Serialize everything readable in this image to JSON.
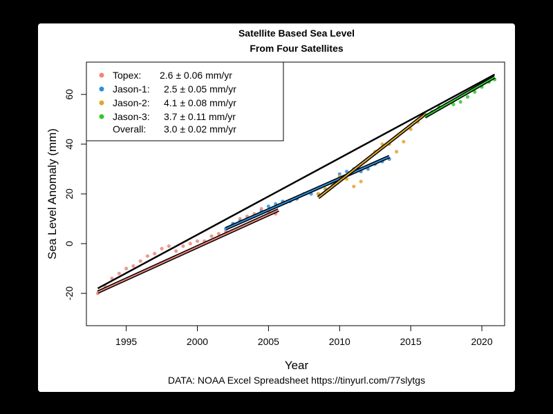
{
  "chart_data": {
    "type": "scatter",
    "title": "Satellite Based Sea Level",
    "subtitle": "From Four Satellites",
    "xlabel": "Year",
    "ylabel": "Sea Level Anomaly (mm)",
    "xlim": [
      1992.2,
      2021.6
    ],
    "ylim": [
      -33,
      73
    ],
    "x_ticks": [
      1995,
      2000,
      2005,
      2010,
      2015,
      2020
    ],
    "y_ticks": [
      -20,
      0,
      20,
      40,
      60
    ],
    "grid": false,
    "legend_position": "top-left",
    "caption": "DATA: NOAA Excel Spreadsheet https://tinyurl.com/77slytgs",
    "series": [
      {
        "name": "Topex",
        "legend_label": "Topex:",
        "rate_text": "2.6 ± 0.06 mm/yr",
        "color": "#f0857a",
        "x": [
          1993.0,
          1993.5,
          1994.0,
          1994.5,
          1995.0,
          1995.5,
          1996.0,
          1996.5,
          1997.0,
          1997.5,
          1998.0,
          1998.5,
          1999.0,
          1999.5,
          2000.0,
          2000.5,
          2001.0,
          2001.5,
          2002.0,
          2002.5,
          2003.0,
          2003.5,
          2004.0,
          2004.5,
          2005.0,
          2005.5
        ],
        "y": [
          -20,
          -17,
          -14,
          -12,
          -10,
          -9,
          -7,
          -5,
          -4,
          -2,
          -1,
          -3,
          -1,
          0,
          1,
          1,
          3,
          4,
          5,
          8,
          10,
          11,
          12,
          14,
          13,
          12
        ],
        "fit": [
          [
            1993.0,
            -19.5
          ],
          [
            2005.7,
            13.5
          ]
        ],
        "fit_color": "#f0857a"
      },
      {
        "name": "Jason-1",
        "legend_label": "Jason-1:",
        "rate_text": "2.5 ± 0.05 mm/yr",
        "color": "#2b8fdd",
        "x": [
          2002.0,
          2002.5,
          2003.0,
          2003.5,
          2004.0,
          2004.5,
          2005.0,
          2005.5,
          2006.0,
          2006.5,
          2007.0,
          2007.5,
          2008.0,
          2008.5,
          2009.0,
          2009.5,
          2010.0,
          2010.5,
          2011.0,
          2011.5,
          2012.0,
          2012.5,
          2013.0,
          2013.5
        ],
        "y": [
          6,
          8,
          9,
          10,
          11,
          13,
          15,
          16,
          17,
          17,
          18,
          20,
          20,
          20,
          22,
          25,
          28,
          29,
          30,
          29,
          30,
          32,
          33,
          34
        ],
        "fit": [
          [
            2002.0,
            6.0
          ],
          [
            2013.5,
            35.0
          ]
        ],
        "fit_color": "#2b8fdd"
      },
      {
        "name": "Jason-2",
        "legend_label": "Jason-2:",
        "rate_text": "4.1 ± 0.08 mm/yr",
        "color": "#e0a62c",
        "x": [
          2008.5,
          2009.0,
          2009.5,
          2010.0,
          2010.5,
          2011.0,
          2011.5,
          2012.0,
          2012.5,
          2013.0,
          2013.5,
          2014.0,
          2014.5,
          2015.0,
          2015.5,
          2016.0
        ],
        "y": [
          20,
          22,
          24,
          27,
          26,
          23,
          25,
          31,
          37,
          40,
          40,
          37,
          41,
          46,
          49,
          52
        ],
        "fit": [
          [
            2008.5,
            18.5
          ],
          [
            2016.0,
            52.0
          ]
        ],
        "fit_color": "#e0a62c"
      },
      {
        "name": "Jason-3",
        "legend_label": "Jason-3:",
        "rate_text": "3.7 ± 0.11 mm/yr",
        "color": "#2ec82e",
        "x": [
          2016.0,
          2016.5,
          2017.0,
          2017.5,
          2018.0,
          2018.5,
          2019.0,
          2019.5,
          2020.0,
          2020.5,
          2020.9
        ],
        "y": [
          52,
          53,
          55,
          56,
          56,
          57,
          59,
          61,
          63,
          65,
          66
        ],
        "fit": [
          [
            2016.0,
            51.0
          ],
          [
            2020.9,
            67.0
          ]
        ],
        "fit_color": "#2ec82e"
      }
    ],
    "overall": {
      "legend_label": "Overall:",
      "rate_text": "3.0 ± 0.02 mm/yr",
      "fit": [
        [
          1993.0,
          -18.0
        ],
        [
          2020.9,
          68.0
        ]
      ],
      "color": "#000000"
    }
  }
}
